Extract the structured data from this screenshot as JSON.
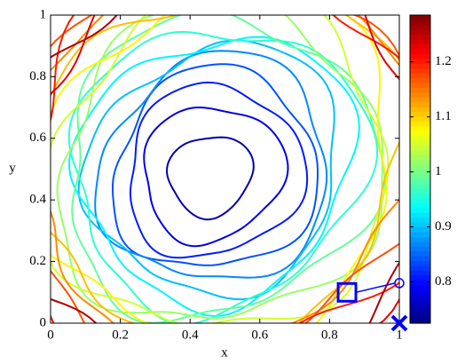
{
  "chart_data": {
    "type": "contour",
    "xlabel": "x",
    "ylabel": "y",
    "xlim": [
      0,
      1
    ],
    "ylim": [
      0,
      1
    ],
    "xticks": [
      0,
      0.2,
      0.4,
      0.6,
      0.8,
      1
    ],
    "yticks": [
      0,
      0.2,
      0.4,
      0.6,
      0.8,
      1
    ],
    "levels": [
      0.75,
      0.78,
      0.81,
      0.84,
      0.87,
      0.9,
      0.93,
      0.96,
      0.99,
      1.02,
      1.05,
      1.08,
      1.11,
      1.14,
      1.17,
      1.2,
      1.23,
      1.26
    ],
    "colormap": "jet",
    "clim": [
      0.725,
      1.285
    ],
    "cticks": [
      0.8,
      0.9,
      1,
      1.1,
      1.2
    ],
    "markers": [
      {
        "shape": "square",
        "x": 0.85,
        "y": 0.1,
        "color": "#0000ff"
      },
      {
        "shape": "circle",
        "x": 1,
        "y": 0.13,
        "color": "#0000ff"
      },
      {
        "shape": "cross",
        "x": 1,
        "y": 0,
        "color": "#0000ff"
      }
    ]
  }
}
